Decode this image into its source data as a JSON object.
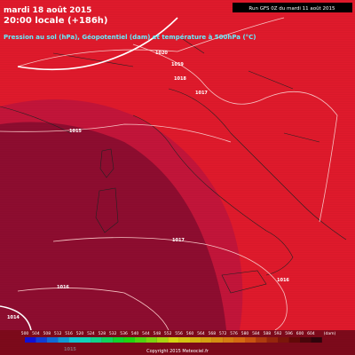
{
  "header": {
    "date": "mardi 18 août 2015",
    "time": "20:00 locale (+186h)",
    "description": "Pression au sol (hPa), Géopotentiel (dam) et température à 500hPa (°C)",
    "run": "Run GFS 0Z du mardi 11 août 2015"
  },
  "isobar_labels": [
    "1020",
    "1019",
    "1018",
    "1017",
    "1015",
    "1017",
    "1016",
    "1016",
    "1014",
    "1015"
  ],
  "color_scale": {
    "labels": [
      500,
      504,
      508,
      512,
      516,
      520,
      524,
      528,
      532,
      536,
      540,
      544,
      548,
      552,
      556,
      560,
      564,
      568,
      572,
      576,
      580,
      584,
      588,
      592,
      596,
      600,
      604
    ],
    "unit": "(dam)"
  },
  "footer": {
    "copyright": "Copyright 2015 Meteociel.fr"
  }
}
